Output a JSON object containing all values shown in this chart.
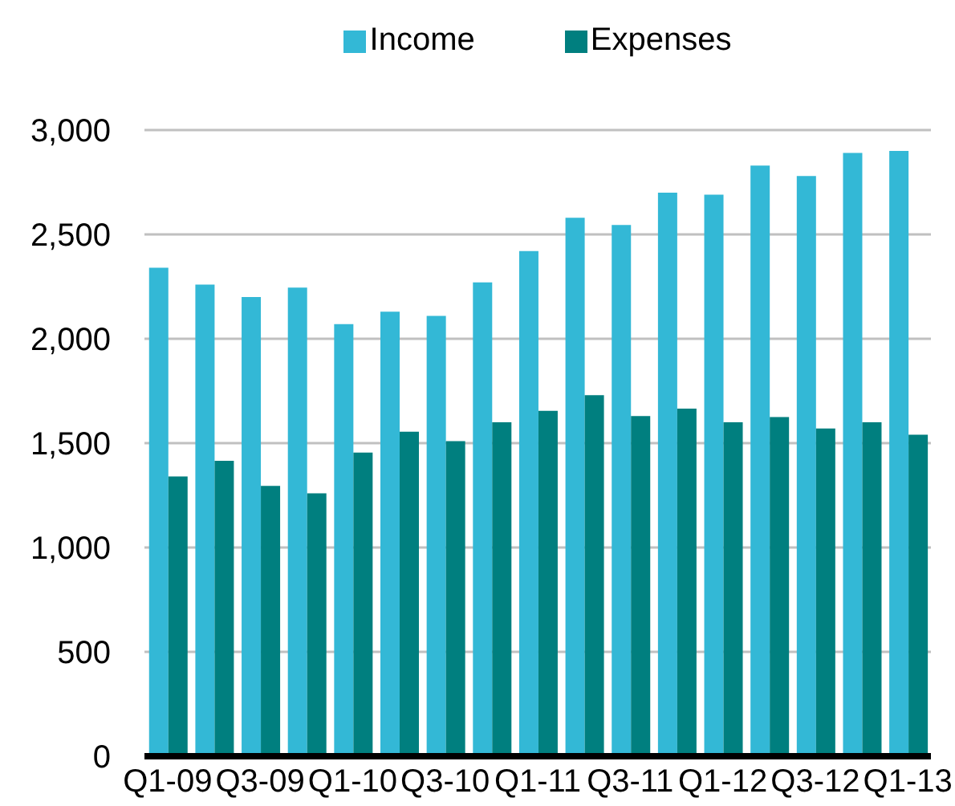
{
  "chart_data": {
    "type": "bar",
    "categories": [
      "Q1-09",
      null,
      "Q3-09",
      null,
      "Q1-10",
      null,
      "Q3-10",
      null,
      "Q1-11",
      null,
      "Q3-11",
      null,
      "Q1-12",
      null,
      "Q3-12",
      null,
      "Q1-13"
    ],
    "series": [
      {
        "name": "Income",
        "color": "#33b8d6",
        "values": [
          2340,
          2260,
          2200,
          2245,
          2070,
          2130,
          2110,
          2270,
          2420,
          2580,
          2545,
          2700,
          2690,
          2830,
          2780,
          2890,
          2900
        ]
      },
      {
        "name": "Expenses",
        "color": "#007f7f",
        "values": [
          1340,
          1415,
          1295,
          1260,
          1455,
          1555,
          1510,
          1600,
          1655,
          1730,
          1630,
          1665,
          1600,
          1625,
          1570,
          1600,
          1540
        ]
      }
    ],
    "ylim": [
      0,
      3000
    ],
    "yticks": [
      0,
      {
        "value": 500,
        "label": "500"
      },
      {
        "value": 1000,
        "label": "1,000"
      },
      {
        "value": 1500,
        "label": "1,500"
      },
      {
        "value": 2000,
        "label": "2,000"
      },
      {
        "value": 2500,
        "label": "2,500"
      },
      {
        "value": 3000,
        "label": "3,000"
      }
    ],
    "grid": "y",
    "legend": "top"
  }
}
